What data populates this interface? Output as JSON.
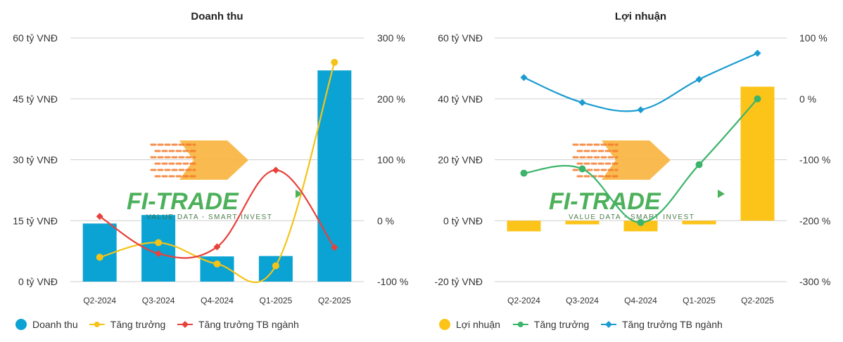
{
  "watermark": {
    "text": "FI-TRADE",
    "tagline": "VALUE DATA - SMART INVEST"
  },
  "chart_data": [
    {
      "type": "bar+line",
      "title": "Doanh thu",
      "categories": [
        "Q2-2024",
        "Q3-2024",
        "Q4-2024",
        "Q1-2025",
        "Q2-2025"
      ],
      "left_axis": {
        "ticks": [
          "0 tỷ VNĐ",
          "15 tỷ VNĐ",
          "30 tỷ VNĐ",
          "45 tỷ VNĐ",
          "60 tỷ VNĐ"
        ],
        "ylim": [
          0,
          60
        ],
        "unit": "tỷ VNĐ"
      },
      "right_axis": {
        "ticks": [
          "-100 %",
          "0 %",
          "100 %",
          "200 %",
          "300 %"
        ],
        "ylim": [
          -100,
          300
        ],
        "unit": "%"
      },
      "grid": true,
      "legend_position": "bottom-left",
      "series": [
        {
          "name": "Doanh thu",
          "kind": "bar",
          "axis": "left",
          "color": "#0aa3d3",
          "values": [
            14.3,
            16.4,
            6.2,
            6.3,
            52
          ]
        },
        {
          "name": "Tăng trưởng",
          "kind": "line",
          "axis": "right",
          "color": "#f5c318",
          "marker": "circle",
          "values": [
            -60,
            -36,
            -71,
            -74,
            260
          ]
        },
        {
          "name": "Tăng trưởng TB ngành",
          "kind": "line",
          "axis": "right",
          "color": "#e8413c",
          "marker": "diamond",
          "values": [
            7,
            -54,
            -43,
            83,
            -44
          ]
        }
      ]
    },
    {
      "type": "bar+line",
      "title": "Lợi nhuận",
      "categories": [
        "Q2-2024",
        "Q3-2024",
        "Q4-2024",
        "Q1-2025",
        "Q2-2025"
      ],
      "left_axis": {
        "ticks": [
          "-20 tỷ VNĐ",
          "0 tỷ VNĐ",
          "20 tỷ VNĐ",
          "40 tỷ VNĐ",
          "60 tỷ VNĐ"
        ],
        "ylim": [
          -20,
          60
        ],
        "unit": "tỷ VNĐ"
      },
      "right_axis": {
        "ticks": [
          "-300 %",
          "-200 %",
          "-100 %",
          "0 %",
          "100 %"
        ],
        "ylim": [
          -300,
          100
        ],
        "unit": "%"
      },
      "grid": true,
      "legend_position": "bottom-left",
      "series": [
        {
          "name": "Lợi nhuận",
          "kind": "bar",
          "axis": "left",
          "color": "#fcc419",
          "values": [
            -3.5,
            -1.2,
            -3.5,
            -1.2,
            44
          ]
        },
        {
          "name": "Tăng trưởng",
          "kind": "line",
          "axis": "right",
          "color": "#3cb46b",
          "marker": "circle",
          "values": [
            -122,
            -115,
            -203,
            -108,
            0
          ]
        },
        {
          "name": "Tăng trưởng TB ngành",
          "kind": "line",
          "axis": "right",
          "color": "#1b9bd1",
          "marker": "diamond",
          "values": [
            35,
            -6,
            -18,
            32,
            75
          ]
        }
      ]
    }
  ]
}
